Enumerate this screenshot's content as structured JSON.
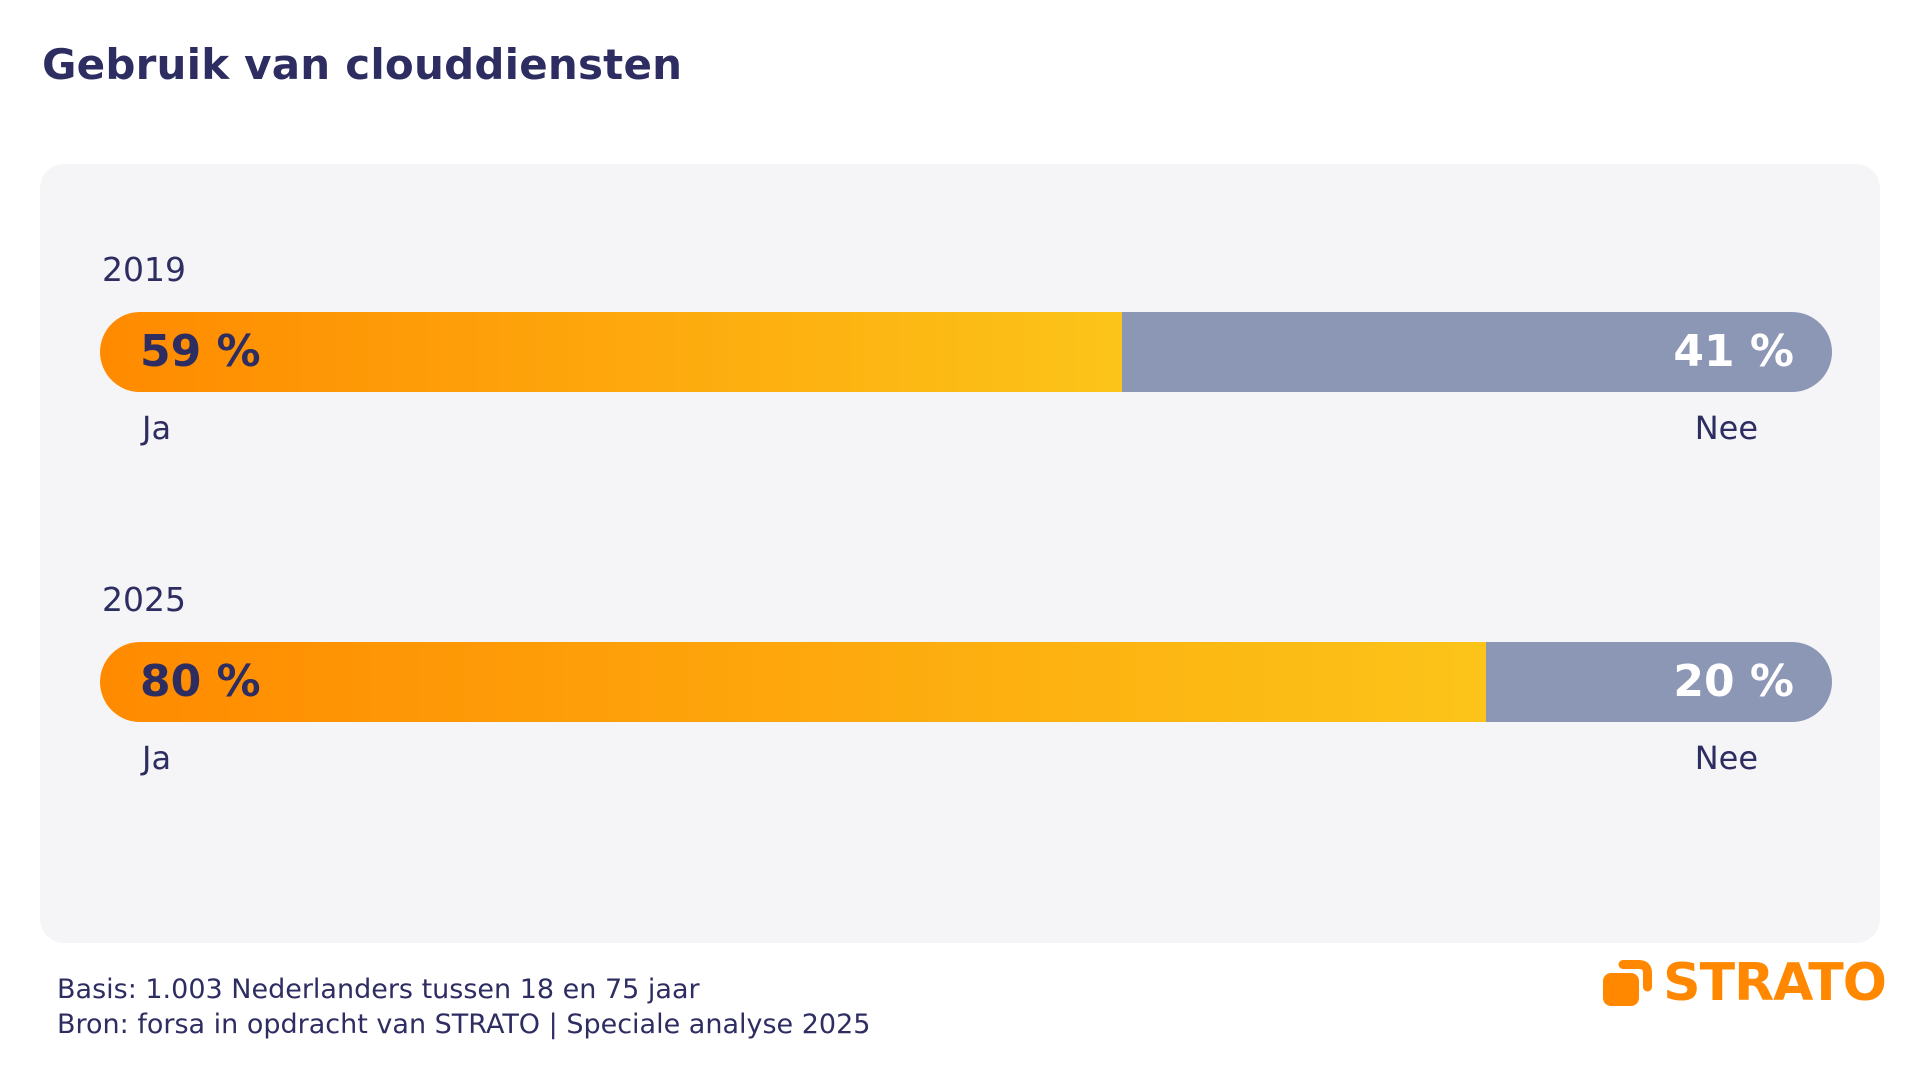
{
  "chart": {
    "title": "Gebruik van clouddiensten",
    "groups": [
      {
        "year": "2019",
        "yes": {
          "label": "Ja",
          "value": 59,
          "display": "59 %"
        },
        "no": {
          "label": "Nee",
          "value": 41,
          "display": "41 %"
        }
      },
      {
        "year": "2025",
        "yes": {
          "label": "Ja",
          "value": 80,
          "display": "80 %"
        },
        "no": {
          "label": "Nee",
          "value": 20,
          "display": "20 %"
        }
      }
    ]
  },
  "chart_data": {
    "type": "bar",
    "subtype": "horizontal_stacked_percentage",
    "title": "Gebruik van clouddiensten",
    "categories": [
      "2019",
      "2025"
    ],
    "series": [
      {
        "name": "Ja",
        "values": [
          59,
          80
        ]
      },
      {
        "name": "Nee",
        "values": [
          41,
          20
        ]
      }
    ],
    "unit": "%",
    "xlim": [
      0,
      100
    ],
    "grid": false,
    "legend": "segment labels below bars: Ja under left end, Nee under right end",
    "value_labels": [
      "59 %",
      "41 %",
      "80 %",
      "20 %"
    ]
  },
  "footer": {
    "line1": "Basis: 1.003 Nederlanders tussen 18 en 75 jaar",
    "line2": "Bron: forsa in opdracht van STRATO | Speciale analyse 2025"
  },
  "logo": {
    "wordmark": "STRATO"
  },
  "colors": {
    "navy": "#2e2d62",
    "panel": "#f5f5f7",
    "orange_start": "#ff8a00",
    "orange_end": "#fcc419",
    "gray": "#8c96b5",
    "white": "#ffffff",
    "logo_orange": "#ff8800"
  }
}
